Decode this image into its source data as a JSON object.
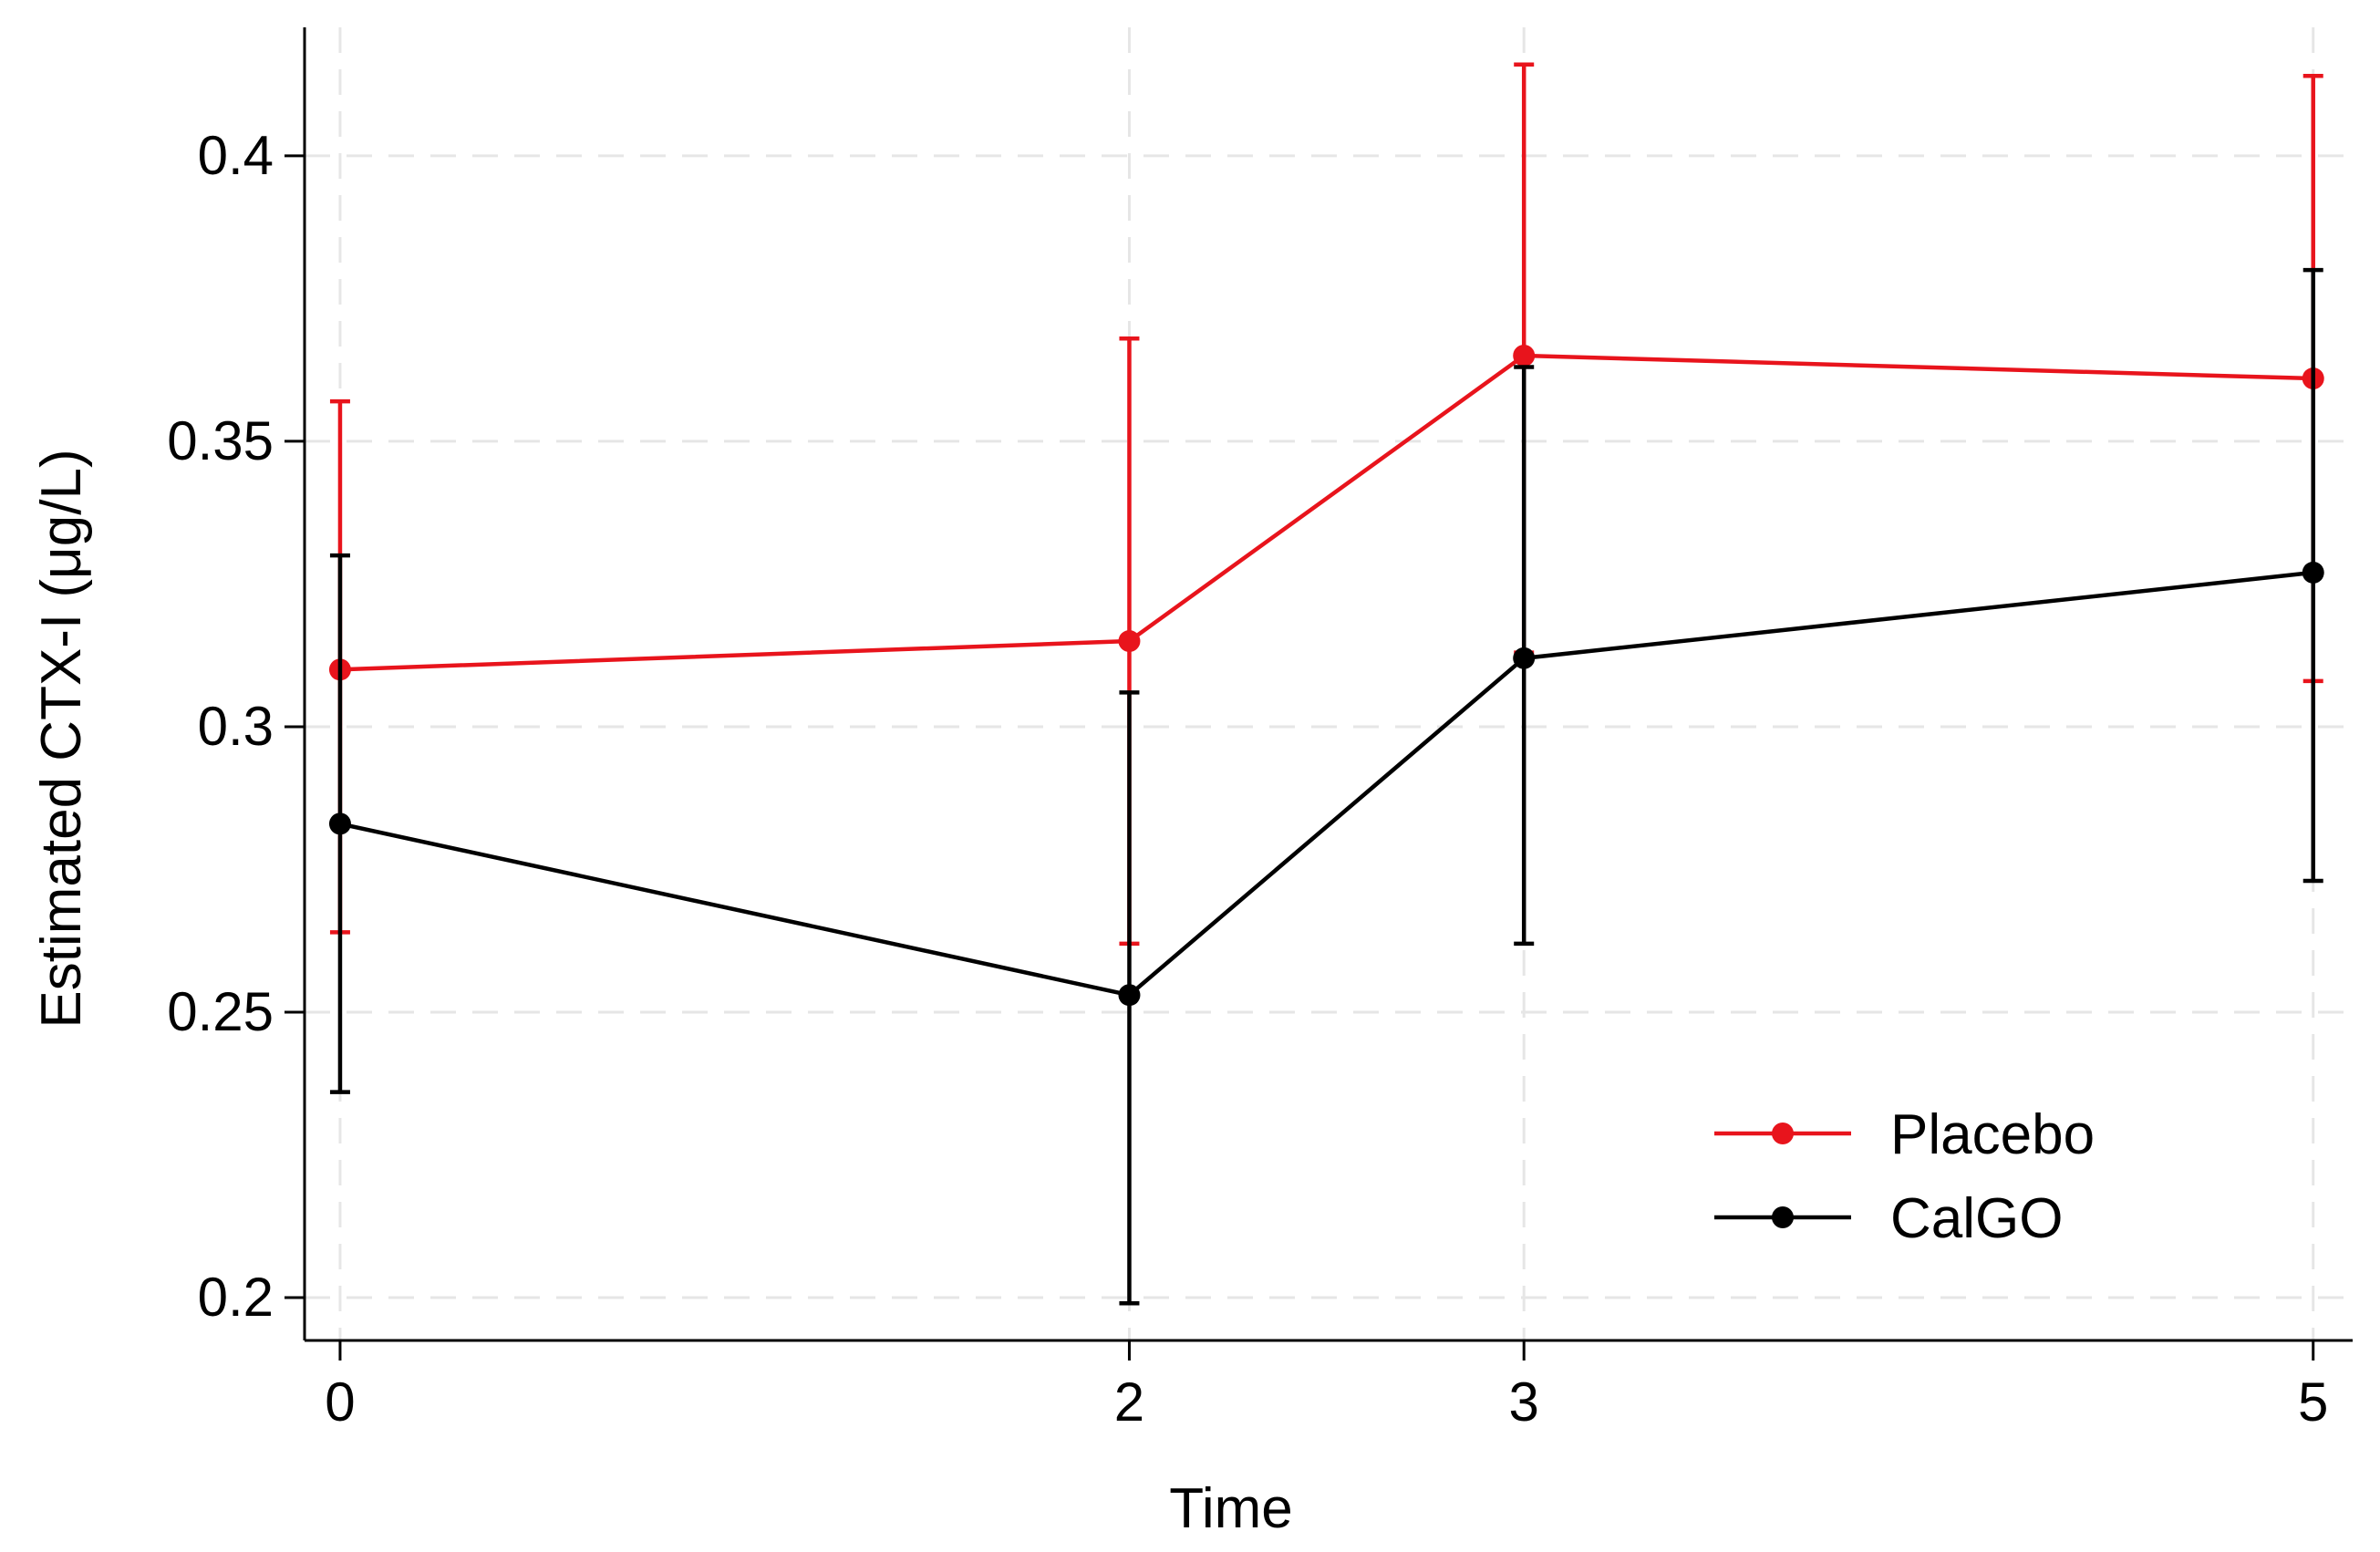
{
  "chart_data": {
    "type": "line",
    "xlabel": "Time",
    "ylabel": "Estimated CTX-I (μg/L)",
    "x": [
      0,
      2,
      3,
      5
    ],
    "x_ticks": [
      0,
      2,
      3,
      5
    ],
    "y_ticks": [
      0.2,
      0.25,
      0.3,
      0.35,
      0.4
    ],
    "y_tick_labels": [
      "0.2",
      "0.25",
      "0.3",
      "0.35",
      "0.4"
    ],
    "xlim": [
      -0.09,
      5.1
    ],
    "ylim": [
      0.1925,
      0.4225
    ],
    "grid": true,
    "legend_position": "bottom-right",
    "series": [
      {
        "name": "Placebo",
        "color": "#e8141c",
        "values": [
          0.31,
          0.315,
          0.365,
          0.361
        ],
        "lower": [
          0.264,
          0.262,
          0.313,
          0.308
        ],
        "upper": [
          0.357,
          0.368,
          0.416,
          0.414
        ]
      },
      {
        "name": "CalGO",
        "color": "#000000",
        "values": [
          0.283,
          0.253,
          0.312,
          0.327
        ],
        "lower": [
          0.236,
          0.199,
          0.262,
          0.273
        ],
        "upper": [
          0.33,
          0.306,
          0.363,
          0.38
        ]
      }
    ]
  }
}
